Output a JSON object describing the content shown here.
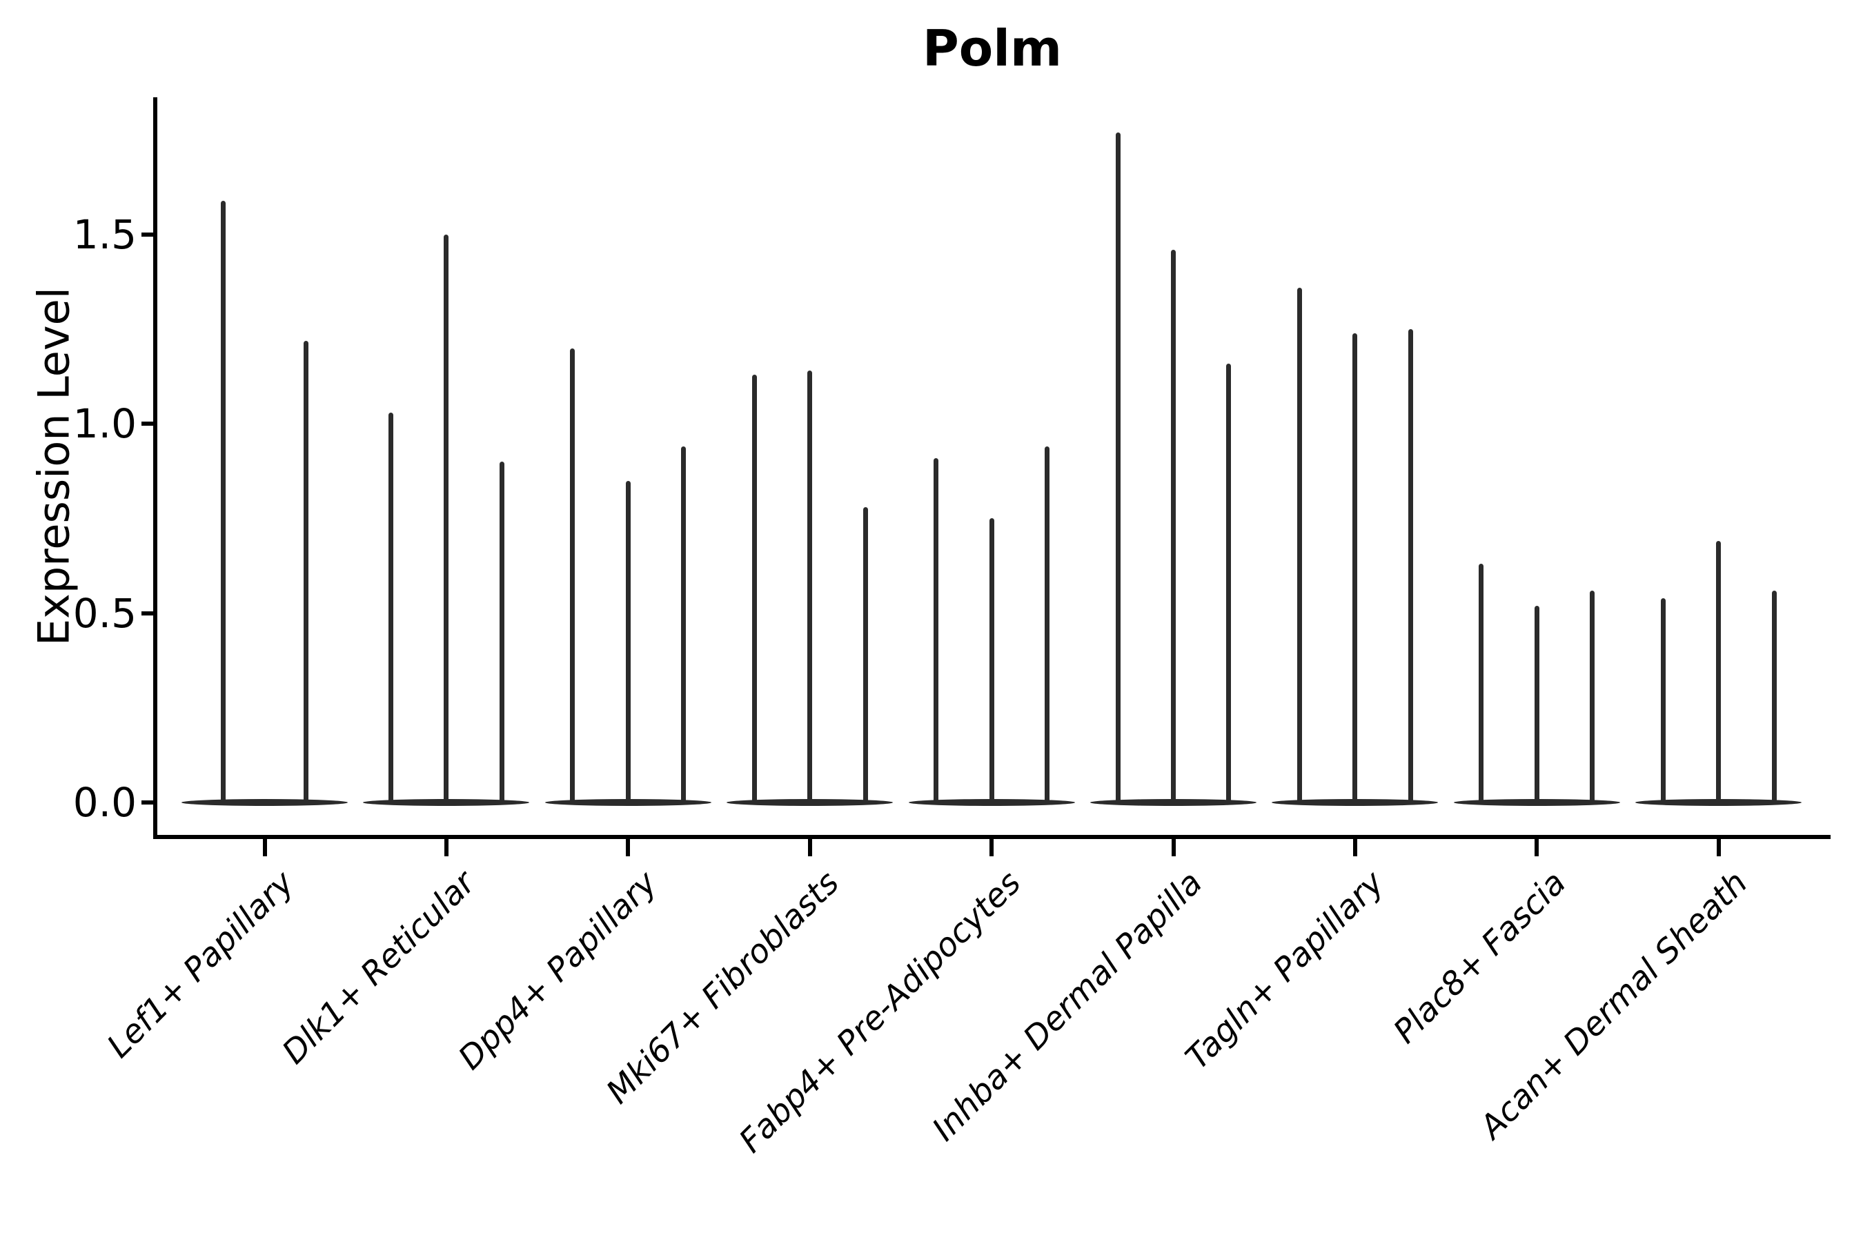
{
  "chart_data": {
    "type": "violin",
    "title": "Polm",
    "ylabel": "Expression Level",
    "xlabel": "",
    "ytick_values": [
      0.0,
      0.5,
      1.0,
      1.5
    ],
    "ytick_labels": [
      "0.0",
      "0.5",
      "1.0",
      "1.5"
    ],
    "ylim": [
      -0.09,
      1.86
    ],
    "grid": false,
    "legend": "none",
    "violin_color": "#2b2b2b",
    "axis_color": "#000000",
    "text_color": "#000000",
    "categories": [
      "Lef1+ Papillary",
      "Dlk1+ Reticular",
      "Dpp4+ Papillary",
      "Mki67+ Fibroblasts",
      "Fabp4+ Pre-Adipocytes",
      "Inhba+ Dermal Papilla",
      "Tagln+ Papillary",
      "Plac8+ Fascia",
      "Acan+ Dermal Sheath"
    ],
    "groups": [
      {
        "category": "Lef1+ Papillary",
        "violin_maxima": [
          1.59,
          1.22
        ]
      },
      {
        "category": "Dlk1+ Reticular",
        "violin_maxima": [
          1.03,
          1.5,
          0.9
        ]
      },
      {
        "category": "Dpp4+ Papillary",
        "violin_maxima": [
          1.2,
          0.85,
          0.94
        ]
      },
      {
        "category": "Mki67+ Fibroblasts",
        "violin_maxima": [
          1.13,
          1.14,
          0.78
        ]
      },
      {
        "category": "Fabp4+ Pre-Adipocytes",
        "violin_maxima": [
          0.91,
          0.75,
          0.94
        ]
      },
      {
        "category": "Inhba+ Dermal Papilla",
        "violin_maxima": [
          1.77,
          1.46,
          1.16
        ]
      },
      {
        "category": "Tagln+ Papillary",
        "violin_maxima": [
          1.36,
          1.24,
          1.25
        ]
      },
      {
        "category": "Plac8+ Fascia",
        "violin_maxima": [
          0.63,
          0.52,
          0.56
        ]
      },
      {
        "category": "Acan+ Dermal Sheath",
        "violin_maxima": [
          0.54,
          0.69,
          0.56
        ]
      }
    ],
    "violins_all_reach_zero": true
  }
}
